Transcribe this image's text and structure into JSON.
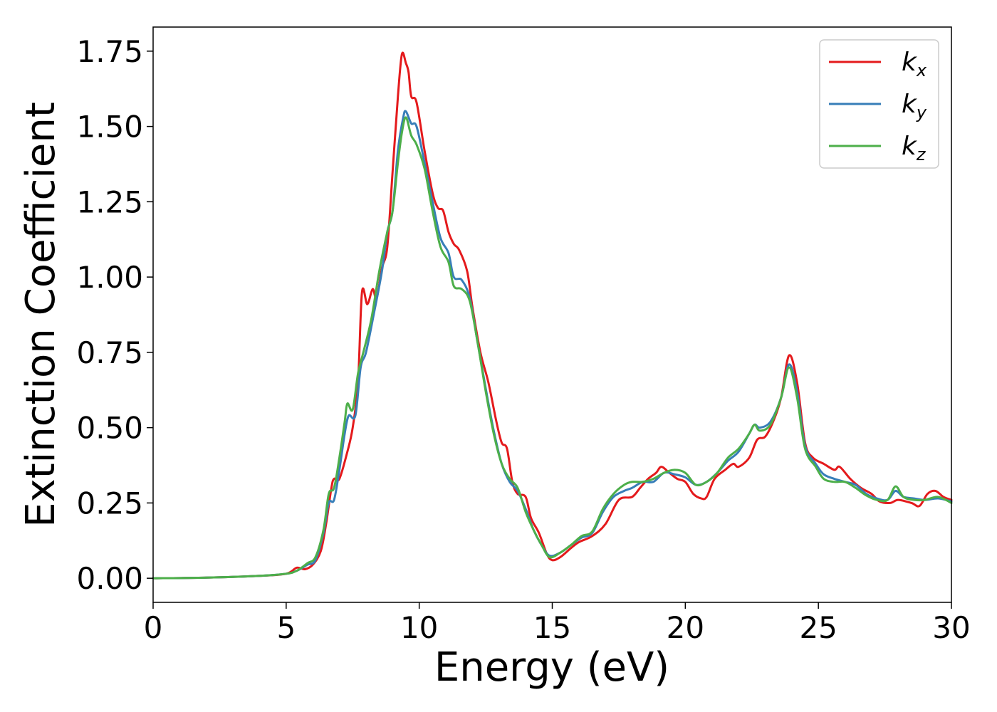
{
  "chart_data": {
    "type": "line",
    "xlabel": "Energy (eV)",
    "ylabel": "Extinction Coefficient",
    "xlim": [
      0,
      30
    ],
    "ylim": [
      -0.08,
      1.83
    ],
    "x_ticks": [
      0,
      5,
      10,
      15,
      20,
      25,
      30
    ],
    "x_tick_labels": [
      "0",
      "5",
      "10",
      "15",
      "20",
      "25",
      "30"
    ],
    "y_ticks": [
      0,
      0.25,
      0.5,
      0.75,
      1.0,
      1.25,
      1.5,
      1.75
    ],
    "y_tick_labels": [
      "0.00",
      "0.25",
      "0.50",
      "0.75",
      "1.00",
      "1.25",
      "1.50",
      "1.75"
    ],
    "grid": false,
    "legend_position": "top-right",
    "series": [
      {
        "name": "k_x",
        "legend_base": "k",
        "legend_sub": "x",
        "color": "#e41a1c",
        "points": [
          [
            0,
            0
          ],
          [
            2,
            0.002
          ],
          [
            4,
            0.008
          ],
          [
            5,
            0.015
          ],
          [
            5.4,
            0.035
          ],
          [
            5.7,
            0.03
          ],
          [
            6,
            0.045
          ],
          [
            6.3,
            0.09
          ],
          [
            6.5,
            0.18
          ],
          [
            6.7,
            0.3
          ],
          [
            6.8,
            0.33
          ],
          [
            7,
            0.33
          ],
          [
            7.3,
            0.42
          ],
          [
            7.5,
            0.5
          ],
          [
            7.7,
            0.65
          ],
          [
            7.85,
            0.95
          ],
          [
            8.05,
            0.91
          ],
          [
            8.25,
            0.96
          ],
          [
            8.4,
            0.93
          ],
          [
            8.6,
            1.03
          ],
          [
            8.8,
            1.1
          ],
          [
            9,
            1.35
          ],
          [
            9.2,
            1.6
          ],
          [
            9.35,
            1.74
          ],
          [
            9.5,
            1.71
          ],
          [
            9.6,
            1.68
          ],
          [
            9.7,
            1.6
          ],
          [
            9.9,
            1.58
          ],
          [
            10.2,
            1.42
          ],
          [
            10.5,
            1.28
          ],
          [
            10.7,
            1.23
          ],
          [
            10.9,
            1.22
          ],
          [
            11.1,
            1.15
          ],
          [
            11.3,
            1.11
          ],
          [
            11.5,
            1.09
          ],
          [
            11.8,
            1.02
          ],
          [
            12,
            0.9
          ],
          [
            12.3,
            0.75
          ],
          [
            12.6,
            0.65
          ],
          [
            12.9,
            0.52
          ],
          [
            13.1,
            0.45
          ],
          [
            13.3,
            0.43
          ],
          [
            13.5,
            0.32
          ],
          [
            13.7,
            0.28
          ],
          [
            14,
            0.27
          ],
          [
            14.2,
            0.2
          ],
          [
            14.5,
            0.15
          ],
          [
            14.8,
            0.08
          ],
          [
            15,
            0.06
          ],
          [
            15.3,
            0.07
          ],
          [
            15.7,
            0.1
          ],
          [
            16,
            0.12
          ],
          [
            16.5,
            0.14
          ],
          [
            17,
            0.18
          ],
          [
            17.5,
            0.26
          ],
          [
            18,
            0.27
          ],
          [
            18.3,
            0.3
          ],
          [
            18.6,
            0.33
          ],
          [
            18.9,
            0.35
          ],
          [
            19.1,
            0.37
          ],
          [
            19.4,
            0.35
          ],
          [
            19.7,
            0.33
          ],
          [
            20,
            0.32
          ],
          [
            20.3,
            0.28
          ],
          [
            20.6,
            0.265
          ],
          [
            20.8,
            0.27
          ],
          [
            21.1,
            0.33
          ],
          [
            21.5,
            0.36
          ],
          [
            21.8,
            0.38
          ],
          [
            22,
            0.37
          ],
          [
            22.4,
            0.4
          ],
          [
            22.7,
            0.46
          ],
          [
            23,
            0.47
          ],
          [
            23.3,
            0.52
          ],
          [
            23.6,
            0.6
          ],
          [
            23.9,
            0.74
          ],
          [
            24.2,
            0.65
          ],
          [
            24.5,
            0.45
          ],
          [
            24.8,
            0.4
          ],
          [
            25.2,
            0.38
          ],
          [
            25.6,
            0.36
          ],
          [
            25.8,
            0.37
          ],
          [
            26.2,
            0.33
          ],
          [
            26.6,
            0.3
          ],
          [
            27,
            0.28
          ],
          [
            27.3,
            0.255
          ],
          [
            27.7,
            0.25
          ],
          [
            28,
            0.26
          ],
          [
            28.5,
            0.25
          ],
          [
            28.8,
            0.24
          ],
          [
            29.1,
            0.28
          ],
          [
            29.4,
            0.29
          ],
          [
            29.7,
            0.27
          ],
          [
            30,
            0.26
          ]
        ]
      },
      {
        "name": "k_y",
        "legend_base": "k",
        "legend_sub": "y",
        "color": "#377eb8",
        "points": [
          [
            0,
            0
          ],
          [
            2,
            0.002
          ],
          [
            4,
            0.008
          ],
          [
            5,
            0.015
          ],
          [
            5.4,
            0.025
          ],
          [
            5.8,
            0.045
          ],
          [
            6.1,
            0.06
          ],
          [
            6.4,
            0.15
          ],
          [
            6.6,
            0.25
          ],
          [
            6.8,
            0.26
          ],
          [
            7,
            0.36
          ],
          [
            7.2,
            0.48
          ],
          [
            7.35,
            0.54
          ],
          [
            7.6,
            0.54
          ],
          [
            7.8,
            0.7
          ],
          [
            8,
            0.75
          ],
          [
            8.3,
            0.88
          ],
          [
            8.6,
            1.02
          ],
          [
            8.8,
            1.15
          ],
          [
            9,
            1.22
          ],
          [
            9.2,
            1.42
          ],
          [
            9.4,
            1.53
          ],
          [
            9.5,
            1.55
          ],
          [
            9.7,
            1.51
          ],
          [
            9.9,
            1.5
          ],
          [
            10.2,
            1.38
          ],
          [
            10.5,
            1.25
          ],
          [
            10.8,
            1.13
          ],
          [
            11.1,
            1.08
          ],
          [
            11.3,
            1.0
          ],
          [
            11.6,
            0.99
          ],
          [
            11.9,
            0.93
          ],
          [
            12.2,
            0.78
          ],
          [
            12.5,
            0.63
          ],
          [
            12.8,
            0.49
          ],
          [
            13.1,
            0.38
          ],
          [
            13.4,
            0.32
          ],
          [
            13.7,
            0.29
          ],
          [
            14,
            0.23
          ],
          [
            14.3,
            0.16
          ],
          [
            14.6,
            0.11
          ],
          [
            14.9,
            0.075
          ],
          [
            15.3,
            0.085
          ],
          [
            15.7,
            0.11
          ],
          [
            16.1,
            0.135
          ],
          [
            16.5,
            0.15
          ],
          [
            16.9,
            0.22
          ],
          [
            17.3,
            0.27
          ],
          [
            17.7,
            0.29
          ],
          [
            18,
            0.3
          ],
          [
            18.4,
            0.32
          ],
          [
            18.8,
            0.32
          ],
          [
            19.2,
            0.35
          ],
          [
            19.6,
            0.345
          ],
          [
            20,
            0.335
          ],
          [
            20.4,
            0.31
          ],
          [
            20.8,
            0.32
          ],
          [
            21.2,
            0.35
          ],
          [
            21.6,
            0.39
          ],
          [
            22,
            0.42
          ],
          [
            22.4,
            0.48
          ],
          [
            22.6,
            0.51
          ],
          [
            22.8,
            0.5
          ],
          [
            23.2,
            0.52
          ],
          [
            23.6,
            0.6
          ],
          [
            23.9,
            0.71
          ],
          [
            24.2,
            0.62
          ],
          [
            24.5,
            0.44
          ],
          [
            24.9,
            0.38
          ],
          [
            25.2,
            0.345
          ],
          [
            25.6,
            0.33
          ],
          [
            26,
            0.32
          ],
          [
            26.4,
            0.31
          ],
          [
            26.8,
            0.28
          ],
          [
            27.2,
            0.265
          ],
          [
            27.6,
            0.26
          ],
          [
            27.9,
            0.29
          ],
          [
            28.2,
            0.27
          ],
          [
            28.6,
            0.265
          ],
          [
            29,
            0.26
          ],
          [
            29.5,
            0.265
          ],
          [
            30,
            0.255
          ]
        ]
      },
      {
        "name": "k_z",
        "legend_base": "k",
        "legend_sub": "z",
        "color": "#4daf4a",
        "points": [
          [
            0,
            0
          ],
          [
            2,
            0.002
          ],
          [
            4,
            0.008
          ],
          [
            5,
            0.015
          ],
          [
            5.4,
            0.025
          ],
          [
            5.8,
            0.05
          ],
          [
            6.1,
            0.07
          ],
          [
            6.4,
            0.16
          ],
          [
            6.6,
            0.28
          ],
          [
            6.8,
            0.3
          ],
          [
            7,
            0.4
          ],
          [
            7.2,
            0.52
          ],
          [
            7.3,
            0.58
          ],
          [
            7.5,
            0.56
          ],
          [
            7.7,
            0.68
          ],
          [
            7.9,
            0.75
          ],
          [
            8.2,
            0.86
          ],
          [
            8.5,
            1.02
          ],
          [
            8.8,
            1.15
          ],
          [
            9,
            1.22
          ],
          [
            9.2,
            1.38
          ],
          [
            9.35,
            1.48
          ],
          [
            9.5,
            1.53
          ],
          [
            9.7,
            1.47
          ],
          [
            9.9,
            1.44
          ],
          [
            10.2,
            1.36
          ],
          [
            10.5,
            1.22
          ],
          [
            10.8,
            1.1
          ],
          [
            11.1,
            1.05
          ],
          [
            11.3,
            0.97
          ],
          [
            11.6,
            0.96
          ],
          [
            11.9,
            0.92
          ],
          [
            12.2,
            0.78
          ],
          [
            12.5,
            0.62
          ],
          [
            12.8,
            0.48
          ],
          [
            13.1,
            0.38
          ],
          [
            13.4,
            0.33
          ],
          [
            13.7,
            0.3
          ],
          [
            14,
            0.22
          ],
          [
            14.3,
            0.16
          ],
          [
            14.6,
            0.11
          ],
          [
            14.9,
            0.07
          ],
          [
            15.3,
            0.085
          ],
          [
            15.7,
            0.11
          ],
          [
            16.1,
            0.14
          ],
          [
            16.5,
            0.155
          ],
          [
            16.9,
            0.23
          ],
          [
            17.3,
            0.28
          ],
          [
            17.7,
            0.31
          ],
          [
            18,
            0.32
          ],
          [
            18.4,
            0.32
          ],
          [
            18.8,
            0.33
          ],
          [
            19.2,
            0.35
          ],
          [
            19.6,
            0.36
          ],
          [
            20,
            0.35
          ],
          [
            20.4,
            0.31
          ],
          [
            20.8,
            0.32
          ],
          [
            21.2,
            0.35
          ],
          [
            21.6,
            0.4
          ],
          [
            22,
            0.43
          ],
          [
            22.4,
            0.48
          ],
          [
            22.6,
            0.51
          ],
          [
            22.8,
            0.49
          ],
          [
            23.2,
            0.51
          ],
          [
            23.6,
            0.6
          ],
          [
            23.9,
            0.7
          ],
          [
            24.2,
            0.6
          ],
          [
            24.5,
            0.43
          ],
          [
            24.9,
            0.37
          ],
          [
            25.2,
            0.33
          ],
          [
            25.6,
            0.32
          ],
          [
            26,
            0.32
          ],
          [
            26.4,
            0.3
          ],
          [
            26.8,
            0.275
          ],
          [
            27.2,
            0.26
          ],
          [
            27.6,
            0.26
          ],
          [
            27.9,
            0.305
          ],
          [
            28.2,
            0.27
          ],
          [
            28.6,
            0.26
          ],
          [
            29,
            0.26
          ],
          [
            29.5,
            0.27
          ],
          [
            30,
            0.25
          ]
        ]
      }
    ]
  }
}
